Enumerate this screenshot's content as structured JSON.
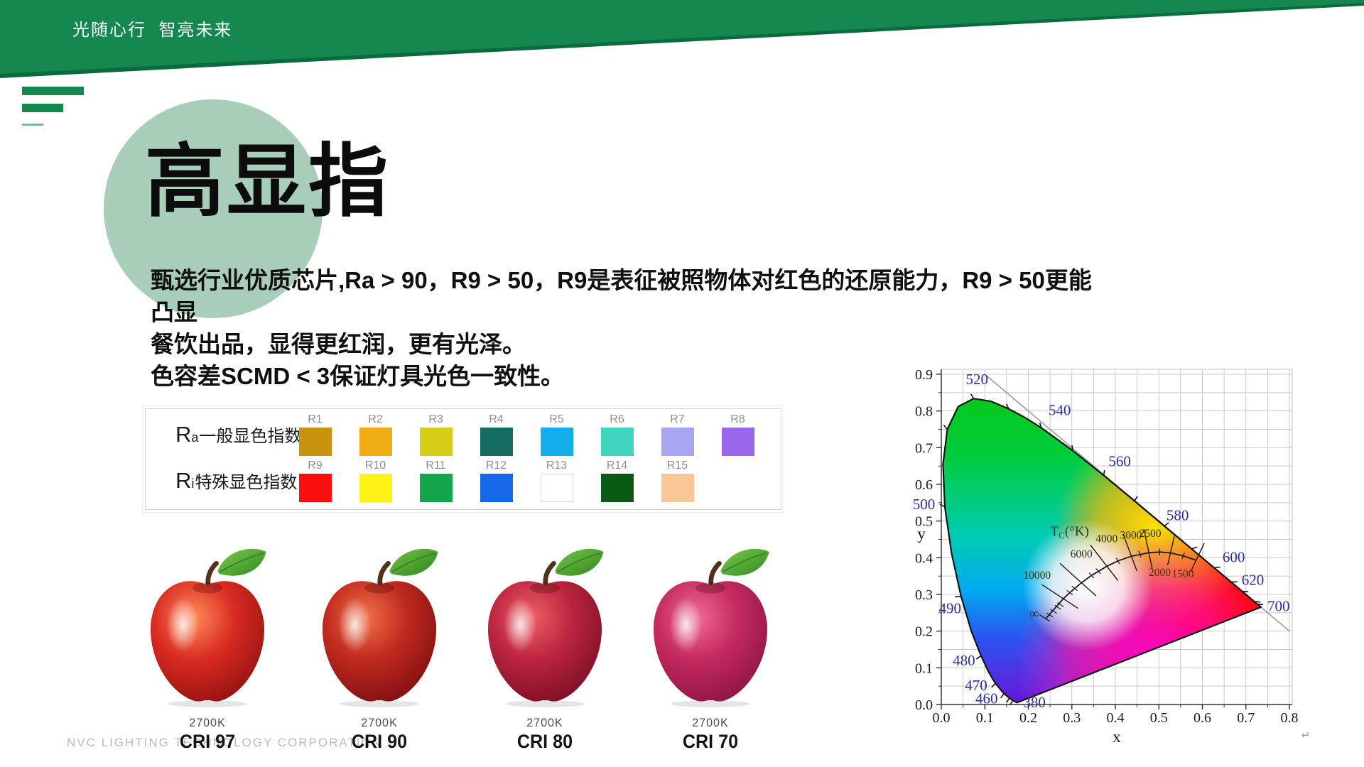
{
  "colors": {
    "accent": "#15884f",
    "accent_dark": "#0c6b3e",
    "accent_light": "#7db89b",
    "circle": "#a8cdb8"
  },
  "banner": {
    "slogan": "光随心行  智亮未来"
  },
  "title": "高显指",
  "body_lines": [
    "甄选行业优质芯片,Ra > 90，R9 > 50，R9是表征被照物体对红色的还原能力，R9 > 50更能凸显",
    "餐饮出品，显得更红润，更有光泽。",
    "色容差SCMD < 3保证灯具光色一致性。"
  ],
  "cri_table": {
    "row1": {
      "r": "R",
      "sub": "a",
      "text": "一般显色指数",
      "cells": [
        {
          "name": "R1",
          "color": "#c8930e"
        },
        {
          "name": "R2",
          "color": "#f0ac13"
        },
        {
          "name": "R3",
          "color": "#d6cd16"
        },
        {
          "name": "R4",
          "color": "#156c60"
        },
        {
          "name": "R5",
          "color": "#14aeea"
        },
        {
          "name": "R6",
          "color": "#41d5c0"
        },
        {
          "name": "R7",
          "color": "#a8a5f3"
        },
        {
          "name": "R8",
          "color": "#9a66ea"
        }
      ]
    },
    "row2": {
      "r": "R",
      "sub": "i",
      "text": "特殊显色指数",
      "cells": [
        {
          "name": "R9",
          "color": "#f90f0e"
        },
        {
          "name": "R10",
          "color": "#fef315"
        },
        {
          "name": "R11",
          "color": "#12a54b"
        },
        {
          "name": "R12",
          "color": "#1668e8"
        },
        {
          "name": "R13",
          "color": "#ffffff"
        },
        {
          "name": "R14",
          "color": "#0a5a12"
        },
        {
          "name": "R15",
          "color": "#f8c795"
        }
      ]
    }
  },
  "apples": [
    {
      "temp": "2700K",
      "cri": "CRI 97",
      "colors": {
        "hi": "#ff8a58",
        "mid": "#d92b22",
        "dark": "#8e0f10",
        "leaf1": "#7cc94e",
        "leaf2": "#2f8a1e"
      }
    },
    {
      "temp": "2700K",
      "cri": "CRI 90",
      "colors": {
        "hi": "#f07048",
        "mid": "#c02a1e",
        "dark": "#7a0c10",
        "leaf1": "#74c247",
        "leaf2": "#2d831d"
      }
    },
    {
      "temp": "2700K",
      "cri": "CRI 80",
      "colors": {
        "hi": "#ee5f63",
        "mid": "#bb2540",
        "dark": "#770c22",
        "leaf1": "#78c54a",
        "leaf2": "#2f861e"
      }
    },
    {
      "temp": "2700K",
      "cri": "CRI 70",
      "colors": {
        "hi": "#ef6a95",
        "mid": "#c42a60",
        "dark": "#8a1242",
        "leaf1": "#7cc94e",
        "leaf2": "#31881f"
      }
    }
  ],
  "watermark": "NVC LIGHTING TECHNOLOGY CORPORATION",
  "chart_data": {
    "type": "area",
    "subtype": "CIE 1931 xy chromaticity diagram",
    "xlabel": "x",
    "ylabel": "y",
    "xlim": [
      0,
      0.8
    ],
    "ylim": [
      0,
      0.9
    ],
    "grid": true,
    "grid_step": 0.05,
    "x_ticks": [
      "0.0",
      "0.1",
      "0.2",
      "0.3",
      "0.4",
      "0.5",
      "0.6",
      "0.7",
      "0.8"
    ],
    "y_ticks": [
      "0.0",
      "0.1",
      "0.2",
      "0.3",
      "0.4",
      "0.5",
      "0.6",
      "0.7",
      "0.8",
      "0.9"
    ],
    "spectral_locus": [
      [
        0.1741,
        0.005
      ],
      [
        0.1689,
        0.0086
      ],
      [
        0.1644,
        0.0109
      ],
      [
        0.1566,
        0.0177
      ],
      [
        0.144,
        0.0297
      ],
      [
        0.1241,
        0.0578
      ],
      [
        0.1096,
        0.0868
      ],
      [
        0.0913,
        0.1327
      ],
      [
        0.0687,
        0.2007
      ],
      [
        0.0454,
        0.295
      ],
      [
        0.0235,
        0.4127
      ],
      [
        0.0082,
        0.5384
      ],
      [
        0.0039,
        0.6548
      ],
      [
        0.0139,
        0.7502
      ],
      [
        0.0389,
        0.812
      ],
      [
        0.0743,
        0.8338
      ],
      [
        0.1142,
        0.8262
      ],
      [
        0.1547,
        0.8059
      ],
      [
        0.1929,
        0.7816
      ],
      [
        0.2296,
        0.7543
      ],
      [
        0.3016,
        0.6923
      ],
      [
        0.3731,
        0.6245
      ],
      [
        0.4441,
        0.5547
      ],
      [
        0.5125,
        0.4866
      ],
      [
        0.5752,
        0.4242
      ],
      [
        0.627,
        0.3725
      ],
      [
        0.6658,
        0.334
      ],
      [
        0.6915,
        0.3083
      ],
      [
        0.719,
        0.2809
      ],
      [
        0.726,
        0.274
      ],
      [
        0.7347,
        0.2653
      ]
    ],
    "locus_ticks": [
      [
        0.1644,
        0.0109
      ],
      [
        0.1566,
        0.0177
      ],
      [
        0.144,
        0.0297
      ],
      [
        0.1241,
        0.0578
      ],
      [
        0.0913,
        0.1327
      ],
      [
        0.0454,
        0.295
      ],
      [
        0.0082,
        0.5384
      ],
      [
        0.0139,
        0.7502
      ],
      [
        0.0743,
        0.8338
      ],
      [
        0.1547,
        0.8059
      ],
      [
        0.2296,
        0.7543
      ],
      [
        0.3016,
        0.6923
      ],
      [
        0.3731,
        0.6245
      ],
      [
        0.4441,
        0.5547
      ],
      [
        0.5125,
        0.4866
      ],
      [
        0.5752,
        0.4242
      ],
      [
        0.627,
        0.3725
      ],
      [
        0.6658,
        0.334
      ],
      [
        0.6915,
        0.3083
      ],
      [
        0.719,
        0.2809
      ],
      [
        0.726,
        0.274
      ]
    ],
    "wavelength_labels": [
      {
        "text": "520",
        "lx": 0.082,
        "ly": 0.886
      },
      {
        "text": "540",
        "lx": 0.272,
        "ly": 0.802
      },
      {
        "text": "560",
        "lx": 0.41,
        "ly": 0.663
      },
      {
        "text": "580",
        "lx": 0.543,
        "ly": 0.516
      },
      {
        "text": "600",
        "lx": 0.672,
        "ly": 0.402
      },
      {
        "text": "620",
        "lx": 0.716,
        "ly": 0.34
      },
      {
        "text": "700",
        "lx": 0.775,
        "ly": 0.268
      },
      {
        "text": "500",
        "lx": -0.04,
        "ly": 0.546
      },
      {
        "text": "490",
        "lx": 0.02,
        "ly": 0.262
      },
      {
        "text": "480",
        "lx": 0.052,
        "ly": 0.12
      },
      {
        "text": "470",
        "lx": 0.08,
        "ly": 0.052
      },
      {
        "text": "460",
        "lx": 0.104,
        "ly": 0.016
      },
      {
        "text": "380",
        "lx": 0.214,
        "ly": 0.006
      }
    ],
    "planckian_locus": [
      [
        0.24,
        0.234
      ],
      [
        0.2806,
        0.2883
      ],
      [
        0.2952,
        0.3048
      ],
      [
        0.3221,
        0.3318
      ],
      [
        0.3451,
        0.3516
      ],
      [
        0.3805,
        0.3768
      ],
      [
        0.4059,
        0.3913
      ],
      [
        0.4369,
        0.4041
      ],
      [
        0.477,
        0.4137
      ],
      [
        0.502,
        0.4156
      ],
      [
        0.5267,
        0.4133
      ],
      [
        0.556,
        0.405
      ],
      [
        0.5857,
        0.3931
      ]
    ],
    "planckian_title": {
      "t": "T",
      "sub": "C",
      "rest": "(°K)",
      "x": 0.295,
      "y": 0.472
    },
    "isotherms": [
      {
        "t": "10000",
        "x": 0.2806,
        "y": 0.2883,
        "half": 0.05,
        "lx": 0.22,
        "ly": 0.352
      },
      {
        "t": "6000",
        "x": 0.3221,
        "y": 0.3318,
        "half": 0.058,
        "lx": 0.322,
        "ly": 0.41
      },
      {
        "t": "4000",
        "x": 0.3805,
        "y": 0.3768,
        "half": 0.055,
        "lx": 0.38,
        "ly": 0.452
      },
      {
        "t": "3000",
        "x": 0.4369,
        "y": 0.4041,
        "half": 0.05,
        "lx": 0.436,
        "ly": 0.462
      },
      {
        "t": "2500",
        "x": 0.477,
        "y": 0.4137,
        "half": 0.052,
        "lx": 0.48,
        "ly": 0.466
      },
      {
        "t": "2000",
        "x": 0.5267,
        "y": 0.4133,
        "half": 0.04,
        "lx": 0.502,
        "ly": 0.36
      },
      {
        "t": "1500",
        "x": 0.5857,
        "y": 0.3931,
        "half": 0.04,
        "lx": 0.555,
        "ly": 0.356
      },
      {
        "t": "∞",
        "x": 0.24,
        "y": 0.234,
        "half": 0.014,
        "lx": 0.214,
        "ly": 0.246
      }
    ],
    "isotherm_ticks": [
      [
        0.249,
        0.244
      ],
      [
        0.258,
        0.254
      ],
      [
        0.268,
        0.265
      ],
      [
        0.274,
        0.272
      ],
      [
        0.2952,
        0.3048
      ],
      [
        0.3064,
        0.3166
      ],
      [
        0.3451,
        0.3516
      ],
      [
        0.3608,
        0.3635
      ],
      [
        0.4059,
        0.3913
      ],
      [
        0.4562,
        0.41
      ],
      [
        0.502,
        0.4156
      ],
      [
        0.556,
        0.405
      ]
    ],
    "gray_line": [
      [
        0.105,
        0.895
      ],
      [
        0.8,
        0.2
      ]
    ],
    "corner_glyph": "↵"
  }
}
